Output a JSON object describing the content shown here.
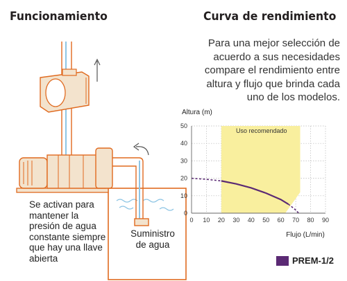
{
  "headings": {
    "left": "Funcionamiento",
    "right": "Curva de rendimiento"
  },
  "intro": [
    "Para una mejor selección de",
    "acuerdo a sus necesidades",
    "compare el rendimiento entre",
    "altura y flujo que brinda cada",
    "uno de los modelos."
  ],
  "caption": [
    "Se activan para",
    "mantener la",
    "presión de agua",
    "constante siempre",
    "que hay una llave",
    "abierta"
  ],
  "supply": [
    "Suministro",
    "de agua"
  ],
  "colors": {
    "pipe_outline": "#e06a1f",
    "water": "#8ec5e4",
    "motor_fill": "#f3e3cd",
    "recommended_zone": "#f9ef9e",
    "curve": "#5b2a74"
  },
  "icons": [
    "arrow-up-icon",
    "arrow-curved-icon",
    "pump-illustration"
  ],
  "chart_data": {
    "type": "line",
    "ylabel": "Altura (m)",
    "xlabel": "Flujo (L/min)",
    "xlim": [
      0,
      90
    ],
    "ylim": [
      0,
      50
    ],
    "xticks": [
      0,
      10,
      20,
      30,
      40,
      50,
      60,
      70,
      80,
      90
    ],
    "yticks": [
      0,
      10,
      20,
      30,
      40,
      50
    ],
    "grid": "dotted",
    "zone_label": "Uso recomendado",
    "zone_polygon": [
      [
        20,
        0
      ],
      [
        20,
        50
      ],
      [
        73,
        50
      ],
      [
        73,
        12
      ],
      [
        63,
        0
      ]
    ],
    "series": [
      {
        "name": "PREM-1/2",
        "solid": [
          [
            20,
            18.5
          ],
          [
            30,
            16.8
          ],
          [
            40,
            14.5
          ],
          [
            50,
            11.5
          ],
          [
            60,
            7.8
          ],
          [
            65,
            5.2
          ]
        ],
        "dashed_before": [
          [
            0,
            20
          ],
          [
            10,
            19.4
          ],
          [
            20,
            18.5
          ]
        ],
        "dashed_after": [
          [
            65,
            5.2
          ],
          [
            68,
            3.2
          ],
          [
            70,
            1.8
          ],
          [
            72,
            0
          ]
        ]
      }
    ],
    "legend_position": "bottom-right"
  }
}
